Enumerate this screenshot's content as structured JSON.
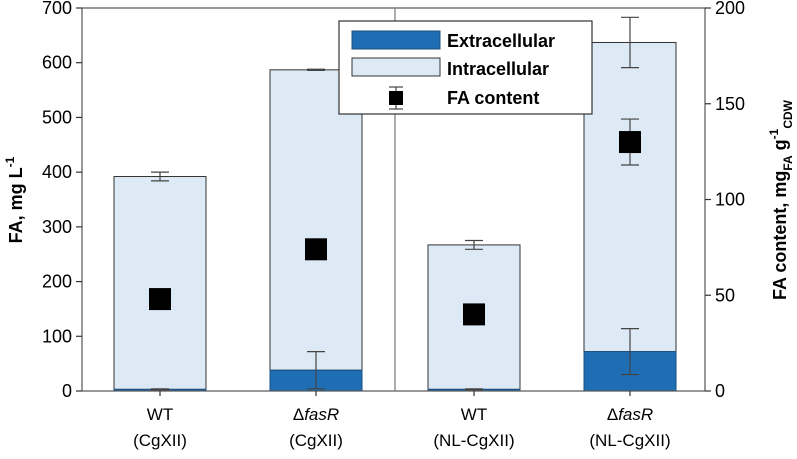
{
  "chart_data": {
    "type": "bar",
    "categories": [
      {
        "line1": "WT",
        "line2": "(CgXII)",
        "italic_part": ""
      },
      {
        "line1": "Δ",
        "line2": "(CgXII)",
        "italic_part": "fasR"
      },
      {
        "line1": "WT",
        "line2": "(NL-CgXII)",
        "italic_part": ""
      },
      {
        "line1": "Δ",
        "line2": "(NL-CgXII)",
        "italic_part": "fasR"
      }
    ],
    "series": [
      {
        "name": "Extracellular",
        "values": [
          3,
          38,
          3,
          72
        ],
        "errors": [
          1,
          34,
          1,
          42
        ],
        "color": "#1f6db3"
      },
      {
        "name": "Intracellular",
        "values": [
          389,
          549,
          264,
          565
        ],
        "errors": [
          8,
          1,
          8,
          46
        ],
        "color": "#ddeaf6"
      }
    ],
    "fa_content": {
      "name": "FA content",
      "values": [
        48,
        74,
        40,
        130
      ],
      "errors": [
        0,
        0,
        0,
        12
      ]
    },
    "stacked": true,
    "ylabel_left": {
      "main": "FA,  mg L",
      "sup": "-1"
    },
    "ylabel_right": {
      "main": "FA content,  mg",
      "sub1": "FA",
      "mid": " g",
      "sup": "-1",
      "sub2": "CDW"
    },
    "ylim_left": [
      0,
      700
    ],
    "yticks_left": [
      0,
      100,
      200,
      300,
      400,
      500,
      600,
      700
    ],
    "ylim_right": [
      0,
      200
    ],
    "yticks_right": [
      0,
      50,
      100,
      150,
      200
    ],
    "legend_position": "top-center",
    "divider_between_groups": true
  }
}
